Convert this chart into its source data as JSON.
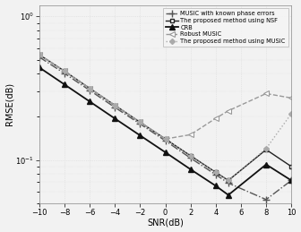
{
  "snr": [
    -10,
    -8,
    -6,
    -4,
    -2,
    0,
    2,
    4,
    5,
    8,
    10
  ],
  "music_known_vals": [
    0.52,
    0.4,
    0.305,
    0.232,
    0.178,
    0.136,
    0.103,
    0.079,
    0.069,
    0.053,
    0.072
  ],
  "proposed_nsf_vals": [
    0.54,
    0.415,
    0.315,
    0.24,
    0.183,
    0.14,
    0.107,
    0.082,
    0.072,
    0.118,
    0.09
  ],
  "crb_vals": [
    0.44,
    0.335,
    0.255,
    0.194,
    0.148,
    0.113,
    0.086,
    0.066,
    0.057,
    0.093,
    0.072
  ],
  "robust_music_vals": [
    0.54,
    0.415,
    0.315,
    0.24,
    0.183,
    0.14,
    0.15,
    0.195,
    0.22,
    0.29,
    0.27
  ],
  "proposed_music_vals": [
    0.54,
    0.415,
    0.315,
    0.24,
    0.183,
    0.14,
    0.107,
    0.082,
    0.072,
    0.12,
    0.21
  ],
  "snr_sparse": [
    -10,
    -8,
    -5,
    -4,
    0,
    5,
    8,
    10
  ],
  "xlabel": "SNR(dB)",
  "ylabel": "RMSE(dB)",
  "xlim": [
    -10,
    10
  ],
  "ylim": [
    0.05,
    1.2
  ],
  "xticks": [
    -10,
    -8,
    -6,
    -4,
    -2,
    0,
    2,
    4,
    6,
    8,
    10
  ],
  "yticks_major": [
    0.1,
    1.0
  ],
  "color_dark": "#222222",
  "color_med": "#666666",
  "color_light": "#aaaaaa",
  "bg_color": "#f2f2f2",
  "grid_color": "#d8d8d8",
  "legend_labels": [
    "MUSIC with known phase errors",
    "The proposed method using NSF",
    "CRB",
    "Robust MUSIC",
    "The proposed method using MUSIC"
  ]
}
